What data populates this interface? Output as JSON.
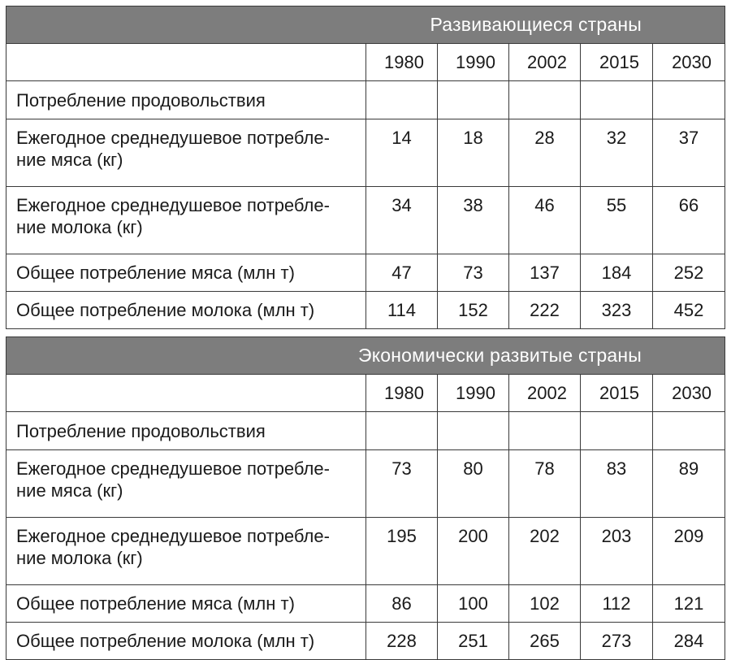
{
  "tables": [
    {
      "title": "Развивающиеся страны",
      "years": [
        "1980",
        "1990",
        "2002",
        "2015",
        "2030"
      ],
      "section_label": "Потребление продовольствия",
      "rows": [
        {
          "label_lines": [
            "Ежегодное среднедушевое потребле-",
            "ние мяса (кг)"
          ],
          "values": [
            "14",
            "18",
            "28",
            "32",
            "37"
          ]
        },
        {
          "label_lines": [
            "Ежегодное среднедушевое потребле-",
            "ние молока (кг)"
          ],
          "values": [
            "34",
            "38",
            "46",
            "55",
            "66"
          ]
        },
        {
          "label_lines": [
            "Общее потребление мяса (млн т)"
          ],
          "values": [
            "47",
            "73",
            "137",
            "184",
            "252"
          ]
        },
        {
          "label_lines": [
            "Общее потребление молока (млн т)"
          ],
          "values": [
            "114",
            "152",
            "222",
            "323",
            "452"
          ]
        }
      ]
    },
    {
      "title": "Экономически развитые страны",
      "years": [
        "1980",
        "1990",
        "2002",
        "2015",
        "2030"
      ],
      "section_label": "Потребление продовольствия",
      "rows": [
        {
          "label_lines": [
            "Ежегодное среднедушевое потребле-",
            "ние мяса (кг)"
          ],
          "values": [
            "73",
            "80",
            "78",
            "83",
            "89"
          ]
        },
        {
          "label_lines": [
            "Ежегодное среднедушевое потребле-",
            "ние молока (кг)"
          ],
          "values": [
            "195",
            "200",
            "202",
            "203",
            "209"
          ]
        },
        {
          "label_lines": [
            "Общее потребление мяса (млн т)"
          ],
          "values": [
            "86",
            "100",
            "102",
            "112",
            "121"
          ]
        },
        {
          "label_lines": [
            "Общее потребление молока (млн т)"
          ],
          "values": [
            "228",
            "251",
            "265",
            "273",
            "284"
          ]
        }
      ]
    }
  ],
  "chart_data": [
    {
      "type": "table",
      "title": "Развивающиеся страны",
      "columns": [
        "1980",
        "1990",
        "2002",
        "2015",
        "2030"
      ],
      "section": "Потребление продовольствия",
      "rows": [
        {
          "label": "Ежегодное среднедушевое потребление мяса (кг)",
          "values": [
            14,
            18,
            28,
            32,
            37
          ]
        },
        {
          "label": "Ежегодное среднедушевое потребление молока (кг)",
          "values": [
            34,
            38,
            46,
            55,
            66
          ]
        },
        {
          "label": "Общее потребление мяса (млн т)",
          "values": [
            47,
            73,
            137,
            184,
            252
          ]
        },
        {
          "label": "Общее потребление молока (млн т)",
          "values": [
            114,
            152,
            222,
            323,
            452
          ]
        }
      ]
    },
    {
      "type": "table",
      "title": "Экономически развитые страны",
      "columns": [
        "1980",
        "1990",
        "2002",
        "2015",
        "2030"
      ],
      "section": "Потребление продовольствия",
      "rows": [
        {
          "label": "Ежегодное среднедушевое потребление мяса (кг)",
          "values": [
            73,
            80,
            78,
            83,
            89
          ]
        },
        {
          "label": "Ежегодное среднедушевое потребление молока (кг)",
          "values": [
            195,
            200,
            202,
            203,
            209
          ]
        },
        {
          "label": "Общее потребление мяса (млн т)",
          "values": [
            86,
            100,
            102,
            112,
            121
          ]
        },
        {
          "label": "Общее потребление молока (млн т)",
          "values": [
            228,
            251,
            265,
            273,
            284
          ]
        }
      ]
    }
  ]
}
